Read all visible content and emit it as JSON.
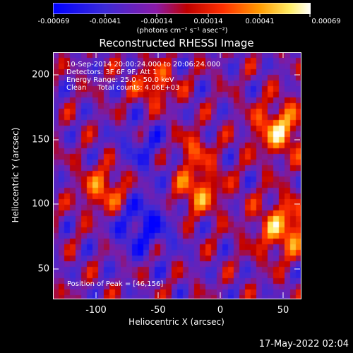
{
  "colorbar": {
    "tick_labels": [
      "-0.00069",
      "-0.00041",
      "-0.00014",
      "0.00014",
      "0.00041",
      "0.00069"
    ],
    "units": "(photons cm⁻² s⁻¹ asec⁻²)"
  },
  "title": "Reconstructed RHESSI Image",
  "info": {
    "line1": "10-Sep-2014 20:00:24.000 to 20:06:24.000",
    "line2": "Detectors: 3F 6F 9F, Att 1",
    "line3": "Energy Range: 25.0 - 50.0 keV",
    "line4": "Clean     Total counts: 4.06E+03"
  },
  "peak_text": "Position of Peak = [46,156]",
  "axes": {
    "x_label": "Heliocentric X (arcsec)",
    "y_label": "Heliocentric Y (arcsec)",
    "x_ticks": [
      "-100",
      "-50",
      "0",
      "50"
    ],
    "y_ticks": [
      "200",
      "150",
      "100",
      "50"
    ]
  },
  "timestamp": "17-May-2022 02:04"
}
